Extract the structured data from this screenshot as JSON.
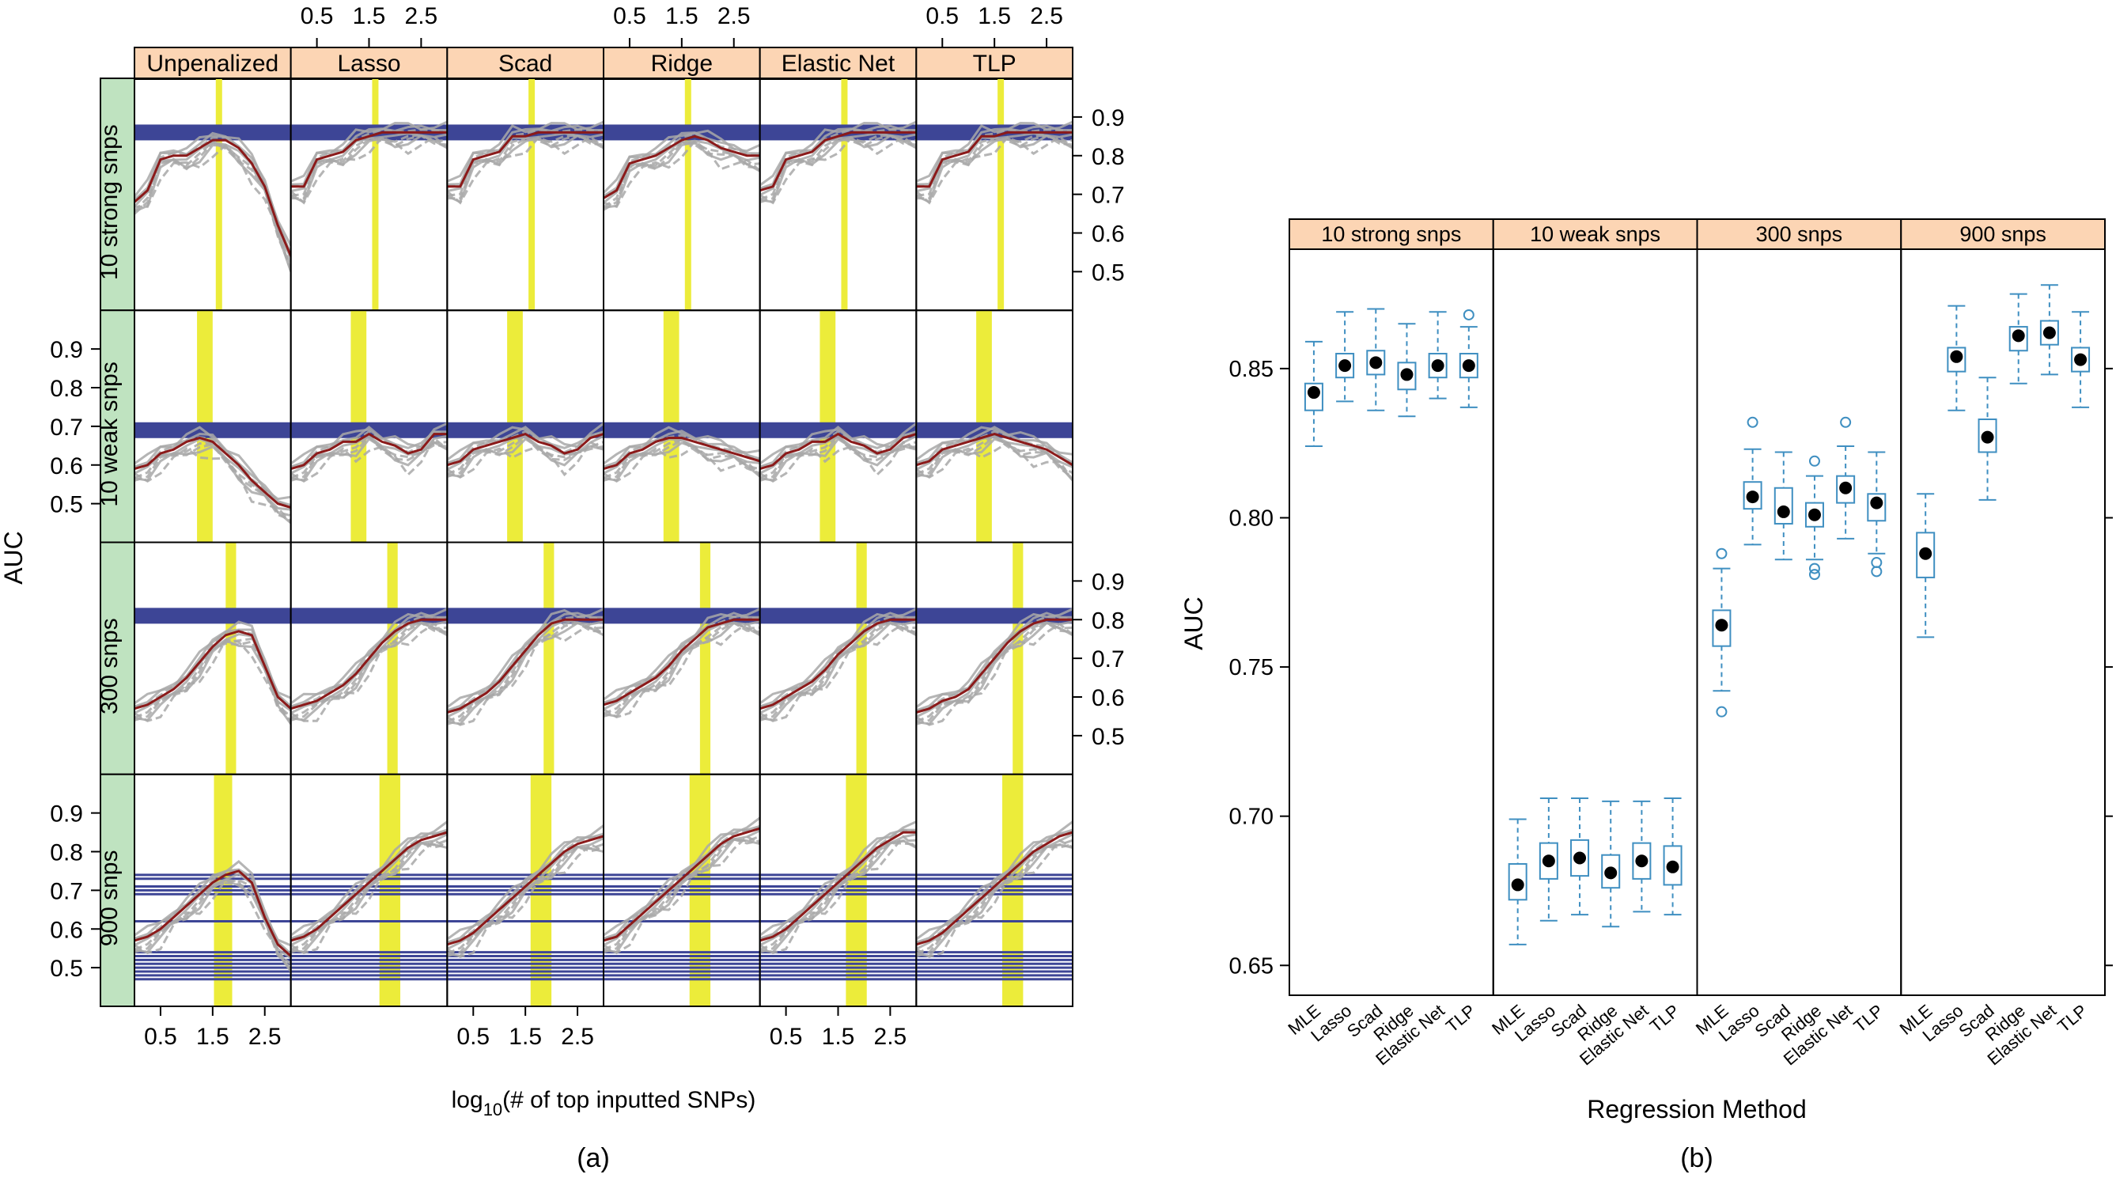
{
  "chart_data": [
    {
      "id": "a",
      "type": "line",
      "caption": "(a)",
      "xlabel_pre": "log",
      "xlabel_sub": "10",
      "xlabel_post": "(# of top inputted SNPs)",
      "ylabel": "AUC",
      "xlim": [
        0,
        3.0
      ],
      "ylim": [
        0.4,
        1.0
      ],
      "x_ticks": [
        "0.5",
        "1.5",
        "2.5"
      ],
      "x_tick_values": [
        0.5,
        1.5,
        2.5
      ],
      "y_ticks": [
        "0.5",
        "0.6",
        "0.7",
        "0.8",
        "0.9"
      ],
      "y_tick_values": [
        0.5,
        0.6,
        0.7,
        0.8,
        0.9
      ],
      "columns": [
        "Unpenalized",
        "Lasso",
        "Scad",
        "Ridge",
        "Elastic Net",
        "TLP"
      ],
      "rows": [
        "10 strong snps",
        "10 weak snps",
        "300 snps",
        "900 snps"
      ],
      "x": [
        0.0,
        0.25,
        0.5,
        0.75,
        1.0,
        1.25,
        1.5,
        1.75,
        2.0,
        2.25,
        2.5,
        2.75,
        3.0
      ],
      "reference_auc": [
        0.86,
        0.69,
        0.81,
        null
      ],
      "reference_lines_900": [
        0.74,
        0.73,
        0.71,
        0.7,
        0.69,
        0.62,
        0.54,
        0.53,
        0.52,
        0.51,
        0.5,
        0.49,
        0.48,
        0.47
      ],
      "optimal_x": [
        [
          1.6,
          1.6,
          1.6,
          1.6,
          1.6,
          1.6
        ],
        [
          1.35,
          1.3,
          1.3,
          1.3,
          1.3,
          1.3
        ],
        [
          1.85,
          1.95,
          1.95,
          1.95,
          1.95,
          1.95
        ],
        [
          1.7,
          1.9,
          1.8,
          1.85,
          1.85,
          1.85
        ]
      ],
      "optimal_width": [
        [
          0.08,
          0.08,
          0.08,
          0.08,
          0.08,
          0.08
        ],
        [
          0.3,
          0.3,
          0.3,
          0.3,
          0.3,
          0.3
        ],
        [
          0.2,
          0.2,
          0.2,
          0.2,
          0.2,
          0.2
        ],
        [
          0.35,
          0.4,
          0.4,
          0.4,
          0.4,
          0.4
        ]
      ],
      "series": [
        [
          {
            "name": "Unpenalized",
            "values": [
              0.68,
              0.71,
              0.79,
              0.8,
              0.8,
              0.82,
              0.84,
              0.84,
              0.82,
              0.78,
              0.72,
              0.62,
              0.54
            ]
          },
          {
            "name": "Lasso",
            "values": [
              0.72,
              0.72,
              0.79,
              0.8,
              0.81,
              0.84,
              0.85,
              0.86,
              0.86,
              0.86,
              0.86,
              0.86,
              0.86
            ]
          },
          {
            "name": "Scad",
            "values": [
              0.72,
              0.72,
              0.79,
              0.8,
              0.81,
              0.85,
              0.85,
              0.86,
              0.86,
              0.86,
              0.86,
              0.86,
              0.86
            ]
          },
          {
            "name": "Ridge",
            "values": [
              0.69,
              0.71,
              0.78,
              0.79,
              0.8,
              0.82,
              0.84,
              0.85,
              0.84,
              0.82,
              0.81,
              0.8,
              0.8
            ]
          },
          {
            "name": "Elastic Net",
            "values": [
              0.71,
              0.72,
              0.79,
              0.8,
              0.81,
              0.84,
              0.85,
              0.86,
              0.86,
              0.86,
              0.86,
              0.86,
              0.86
            ]
          },
          {
            "name": "TLP",
            "values": [
              0.72,
              0.72,
              0.79,
              0.8,
              0.81,
              0.85,
              0.85,
              0.86,
              0.86,
              0.86,
              0.86,
              0.86,
              0.86
            ]
          }
        ],
        [
          {
            "name": "Unpenalized",
            "values": [
              0.59,
              0.6,
              0.63,
              0.64,
              0.66,
              0.67,
              0.66,
              0.63,
              0.6,
              0.56,
              0.53,
              0.5,
              0.49
            ]
          },
          {
            "name": "Lasso",
            "values": [
              0.59,
              0.6,
              0.63,
              0.64,
              0.66,
              0.66,
              0.68,
              0.66,
              0.65,
              0.63,
              0.64,
              0.68,
              0.68
            ]
          },
          {
            "name": "Scad",
            "values": [
              0.6,
              0.61,
              0.64,
              0.65,
              0.66,
              0.67,
              0.68,
              0.66,
              0.65,
              0.63,
              0.64,
              0.67,
              0.68
            ]
          },
          {
            "name": "Ridge",
            "values": [
              0.59,
              0.6,
              0.63,
              0.64,
              0.66,
              0.67,
              0.67,
              0.66,
              0.65,
              0.64,
              0.63,
              0.62,
              0.61
            ]
          },
          {
            "name": "Elastic Net",
            "values": [
              0.59,
              0.6,
              0.63,
              0.64,
              0.66,
              0.66,
              0.68,
              0.66,
              0.65,
              0.63,
              0.64,
              0.67,
              0.68
            ]
          },
          {
            "name": "TLP",
            "values": [
              0.6,
              0.61,
              0.64,
              0.65,
              0.66,
              0.67,
              0.68,
              0.67,
              0.66,
              0.65,
              0.64,
              0.62,
              0.6
            ]
          }
        ],
        [
          {
            "name": "Unpenalized",
            "values": [
              0.57,
              0.58,
              0.6,
              0.62,
              0.65,
              0.69,
              0.73,
              0.76,
              0.77,
              0.76,
              0.68,
              0.6,
              0.57
            ]
          },
          {
            "name": "Lasso",
            "values": [
              0.57,
              0.58,
              0.59,
              0.61,
              0.63,
              0.66,
              0.7,
              0.74,
              0.77,
              0.79,
              0.8,
              0.8,
              0.8
            ]
          },
          {
            "name": "Scad",
            "values": [
              0.56,
              0.57,
              0.59,
              0.61,
              0.64,
              0.68,
              0.72,
              0.76,
              0.79,
              0.8,
              0.8,
              0.8,
              0.8
            ]
          },
          {
            "name": "Ridge",
            "values": [
              0.58,
              0.59,
              0.61,
              0.63,
              0.65,
              0.68,
              0.72,
              0.75,
              0.78,
              0.79,
              0.8,
              0.8,
              0.8
            ]
          },
          {
            "name": "Elastic Net",
            "values": [
              0.57,
              0.58,
              0.6,
              0.62,
              0.64,
              0.67,
              0.71,
              0.74,
              0.77,
              0.79,
              0.8,
              0.8,
              0.8
            ]
          },
          {
            "name": "TLP",
            "values": [
              0.56,
              0.57,
              0.59,
              0.6,
              0.62,
              0.66,
              0.7,
              0.74,
              0.77,
              0.79,
              0.8,
              0.8,
              0.8
            ]
          }
        ],
        [
          {
            "name": "Unpenalized",
            "values": [
              0.57,
              0.58,
              0.6,
              0.63,
              0.66,
              0.69,
              0.72,
              0.74,
              0.75,
              0.72,
              0.63,
              0.56,
              0.53
            ]
          },
          {
            "name": "Lasso",
            "values": [
              0.57,
              0.58,
              0.6,
              0.63,
              0.66,
              0.69,
              0.72,
              0.75,
              0.78,
              0.81,
              0.83,
              0.84,
              0.85
            ]
          },
          {
            "name": "Scad",
            "values": [
              0.56,
              0.57,
              0.59,
              0.62,
              0.65,
              0.68,
              0.71,
              0.74,
              0.77,
              0.8,
              0.82,
              0.83,
              0.84
            ]
          },
          {
            "name": "Ridge",
            "values": [
              0.57,
              0.58,
              0.61,
              0.64,
              0.67,
              0.7,
              0.73,
              0.76,
              0.79,
              0.82,
              0.84,
              0.85,
              0.86
            ]
          },
          {
            "name": "Elastic Net",
            "values": [
              0.57,
              0.58,
              0.6,
              0.63,
              0.66,
              0.69,
              0.72,
              0.75,
              0.78,
              0.81,
              0.83,
              0.85,
              0.85
            ]
          },
          {
            "name": "TLP",
            "values": [
              0.56,
              0.57,
              0.59,
              0.62,
              0.65,
              0.68,
              0.71,
              0.74,
              0.77,
              0.8,
              0.82,
              0.84,
              0.85
            ]
          }
        ]
      ]
    },
    {
      "id": "b",
      "type": "box",
      "caption": "(b)",
      "xlabel": "Regression Method",
      "ylabel": "AUC",
      "ylim": [
        0.64,
        0.89
      ],
      "y_ticks": [
        "0.65",
        "0.70",
        "0.75",
        "0.80",
        "0.85"
      ],
      "y_tick_values": [
        0.65,
        0.7,
        0.75,
        0.8,
        0.85
      ],
      "panels": [
        "10 strong snps",
        "10 weak snps",
        "300 snps",
        "900 snps"
      ],
      "categories": [
        "MLE",
        "Lasso",
        "Scad",
        "Ridge",
        "Elastic Net",
        "TLP"
      ],
      "boxes": [
        [
          {
            "median": 0.842,
            "q1": 0.836,
            "q3": 0.845,
            "lo": 0.824,
            "hi": 0.859,
            "out": []
          },
          {
            "median": 0.851,
            "q1": 0.847,
            "q3": 0.855,
            "lo": 0.839,
            "hi": 0.869,
            "out": []
          },
          {
            "median": 0.852,
            "q1": 0.848,
            "q3": 0.856,
            "lo": 0.836,
            "hi": 0.87,
            "out": []
          },
          {
            "median": 0.848,
            "q1": 0.843,
            "q3": 0.852,
            "lo": 0.834,
            "hi": 0.865,
            "out": []
          },
          {
            "median": 0.851,
            "q1": 0.847,
            "q3": 0.855,
            "lo": 0.84,
            "hi": 0.869,
            "out": []
          },
          {
            "median": 0.851,
            "q1": 0.847,
            "q3": 0.855,
            "lo": 0.837,
            "hi": 0.864,
            "out": [
              0.868
            ]
          }
        ],
        [
          {
            "median": 0.677,
            "q1": 0.672,
            "q3": 0.684,
            "lo": 0.657,
            "hi": 0.699,
            "out": []
          },
          {
            "median": 0.685,
            "q1": 0.679,
            "q3": 0.691,
            "lo": 0.665,
            "hi": 0.706,
            "out": []
          },
          {
            "median": 0.686,
            "q1": 0.68,
            "q3": 0.692,
            "lo": 0.667,
            "hi": 0.706,
            "out": []
          },
          {
            "median": 0.681,
            "q1": 0.676,
            "q3": 0.687,
            "lo": 0.663,
            "hi": 0.705,
            "out": []
          },
          {
            "median": 0.685,
            "q1": 0.679,
            "q3": 0.691,
            "lo": 0.668,
            "hi": 0.705,
            "out": []
          },
          {
            "median": 0.683,
            "q1": 0.677,
            "q3": 0.69,
            "lo": 0.667,
            "hi": 0.706,
            "out": []
          }
        ],
        [
          {
            "median": 0.764,
            "q1": 0.757,
            "q3": 0.769,
            "lo": 0.742,
            "hi": 0.783,
            "out": [
              0.788,
              0.735
            ]
          },
          {
            "median": 0.807,
            "q1": 0.803,
            "q3": 0.812,
            "lo": 0.791,
            "hi": 0.823,
            "out": [
              0.832
            ]
          },
          {
            "median": 0.802,
            "q1": 0.798,
            "q3": 0.81,
            "lo": 0.786,
            "hi": 0.822,
            "out": []
          },
          {
            "median": 0.801,
            "q1": 0.797,
            "q3": 0.805,
            "lo": 0.786,
            "hi": 0.814,
            "out": [
              0.819,
              0.783,
              0.781
            ]
          },
          {
            "median": 0.81,
            "q1": 0.805,
            "q3": 0.814,
            "lo": 0.793,
            "hi": 0.824,
            "out": [
              0.832
            ]
          },
          {
            "median": 0.805,
            "q1": 0.799,
            "q3": 0.808,
            "lo": 0.788,
            "hi": 0.822,
            "out": [
              0.785,
              0.782
            ]
          }
        ],
        [
          {
            "median": 0.788,
            "q1": 0.78,
            "q3": 0.795,
            "lo": 0.76,
            "hi": 0.808,
            "out": []
          },
          {
            "median": 0.854,
            "q1": 0.849,
            "q3": 0.857,
            "lo": 0.836,
            "hi": 0.871,
            "out": []
          },
          {
            "median": 0.827,
            "q1": 0.822,
            "q3": 0.833,
            "lo": 0.806,
            "hi": 0.847,
            "out": []
          },
          {
            "median": 0.861,
            "q1": 0.856,
            "q3": 0.864,
            "lo": 0.845,
            "hi": 0.875,
            "out": []
          },
          {
            "median": 0.862,
            "q1": 0.858,
            "q3": 0.866,
            "lo": 0.848,
            "hi": 0.878,
            "out": []
          },
          {
            "median": 0.853,
            "q1": 0.849,
            "q3": 0.857,
            "lo": 0.837,
            "hi": 0.869,
            "out": []
          }
        ]
      ]
    }
  ]
}
